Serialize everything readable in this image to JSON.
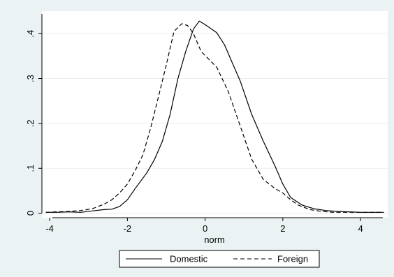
{
  "chart_data": {
    "type": "line",
    "xlabel": "norm",
    "ylabel": "",
    "xlim": [
      -4.2,
      4.7
    ],
    "ylim": [
      -0.01,
      0.45
    ],
    "x_ticks": [
      -4,
      -2,
      0,
      2,
      4
    ],
    "y_ticks": [
      0,
      0.1,
      0.2,
      0.3,
      0.4
    ],
    "x_tick_labels": [
      "-4",
      "-2",
      "0",
      "2",
      "4"
    ],
    "y_tick_labels": [
      "0",
      ".1",
      ".2",
      ".3",
      ".4"
    ],
    "grid": "horizontal",
    "legend_position": "bottom",
    "series": [
      {
        "name": "Domestic",
        "style": "solid",
        "color": "#000000",
        "points": [
          [
            -4.1,
            0.002
          ],
          [
            -3.8,
            0.002
          ],
          [
            -3.5,
            0.003
          ],
          [
            -3.2,
            0.002
          ],
          [
            -2.9,
            0.005
          ],
          [
            -2.6,
            0.008
          ],
          [
            -2.4,
            0.009
          ],
          [
            -2.2,
            0.015
          ],
          [
            -2.0,
            0.03
          ],
          [
            -1.8,
            0.055
          ],
          [
            -1.5,
            0.09
          ],
          [
            -1.3,
            0.12
          ],
          [
            -1.1,
            0.16
          ],
          [
            -0.9,
            0.22
          ],
          [
            -0.7,
            0.3
          ],
          [
            -0.5,
            0.36
          ],
          [
            -0.3,
            0.41
          ],
          [
            -0.15,
            0.428
          ],
          [
            0.0,
            0.42
          ],
          [
            0.3,
            0.402
          ],
          [
            0.5,
            0.375
          ],
          [
            0.7,
            0.335
          ],
          [
            0.9,
            0.295
          ],
          [
            1.2,
            0.22
          ],
          [
            1.5,
            0.16
          ],
          [
            1.8,
            0.105
          ],
          [
            2.0,
            0.065
          ],
          [
            2.2,
            0.035
          ],
          [
            2.5,
            0.018
          ],
          [
            2.8,
            0.01
          ],
          [
            3.1,
            0.006
          ],
          [
            3.4,
            0.004
          ],
          [
            3.7,
            0.003
          ],
          [
            4.0,
            0.002
          ],
          [
            4.3,
            0.002
          ],
          [
            4.6,
            0.002
          ]
        ]
      },
      {
        "name": "Foreign",
        "style": "dashed",
        "color": "#000000",
        "points": [
          [
            -4.1,
            0.002
          ],
          [
            -3.8,
            0.003
          ],
          [
            -3.5,
            0.004
          ],
          [
            -3.2,
            0.006
          ],
          [
            -2.9,
            0.01
          ],
          [
            -2.6,
            0.02
          ],
          [
            -2.4,
            0.03
          ],
          [
            -2.2,
            0.045
          ],
          [
            -2.0,
            0.065
          ],
          [
            -1.8,
            0.095
          ],
          [
            -1.6,
            0.13
          ],
          [
            -1.4,
            0.19
          ],
          [
            -1.2,
            0.26
          ],
          [
            -1.0,
            0.33
          ],
          [
            -0.8,
            0.405
          ],
          [
            -0.6,
            0.422
          ],
          [
            -0.45,
            0.418
          ],
          [
            -0.3,
            0.4
          ],
          [
            -0.1,
            0.36
          ],
          [
            0.3,
            0.325
          ],
          [
            0.6,
            0.27
          ],
          [
            0.9,
            0.195
          ],
          [
            1.2,
            0.12
          ],
          [
            1.5,
            0.075
          ],
          [
            1.8,
            0.055
          ],
          [
            2.0,
            0.045
          ],
          [
            2.2,
            0.03
          ],
          [
            2.4,
            0.018
          ],
          [
            2.7,
            0.008
          ],
          [
            3.0,
            0.004
          ],
          [
            3.3,
            0.002
          ],
          [
            3.6,
            0.002
          ],
          [
            4.0,
            0.002
          ],
          [
            4.3,
            0.002
          ],
          [
            4.6,
            0.002
          ]
        ]
      }
    ]
  }
}
